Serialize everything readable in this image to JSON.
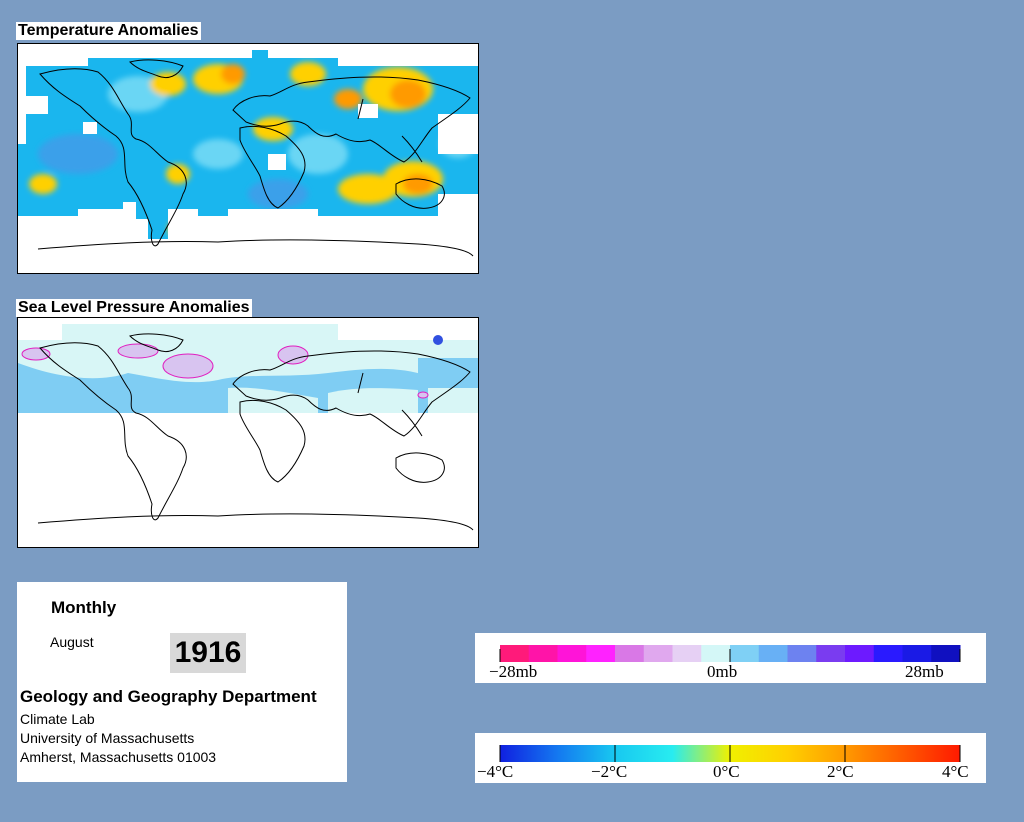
{
  "panels": {
    "temperature": {
      "title": "Temperature Anomalies"
    },
    "pressure": {
      "title": "Sea Level Pressure Anomalies"
    }
  },
  "info": {
    "period": "Monthly",
    "month": "August",
    "year": "1916",
    "department": "Geology and Geography Department",
    "lines": [
      "Climate Lab",
      "University of Massachusetts",
      "Amherst, Massachusetts 01003"
    ]
  },
  "legends": {
    "pressure": {
      "labels": [
        "−28mb",
        "0mb",
        "28mb"
      ],
      "colors": [
        "#ff1a7a",
        "#ff14a8",
        "#ff14d8",
        "#ff22ff",
        "#d978e6",
        "#e0a8ee",
        "#e6d0f4",
        "#d4f7f7",
        "#7fd0f5",
        "#68b0f5",
        "#6d82f0",
        "#7a3cf0",
        "#6d1aff",
        "#2a1aff",
        "#1a1ae6",
        "#1010c0"
      ]
    },
    "temperature": {
      "labels": [
        "−4°C",
        "−2°C",
        "0°C",
        "2°C",
        "4°C"
      ],
      "stops": [
        "#1020e0",
        "#1478f0",
        "#18c8f0",
        "#28ecf0",
        "#f0f000",
        "#ffd000",
        "#ff9a00",
        "#ff5a00",
        "#ff1a00"
      ]
    }
  },
  "colors": {
    "background": "#7b9cc3",
    "temp_cold": "#1ab6ee",
    "temp_cool": "#6ad6f4",
    "temp_warm": "#ffd000",
    "temp_hot": "#ff9a00",
    "pressure_light": "#d8f6f6",
    "pressure_blue": "#7fcdf3",
    "pressure_purple": "#d8c4f0"
  }
}
